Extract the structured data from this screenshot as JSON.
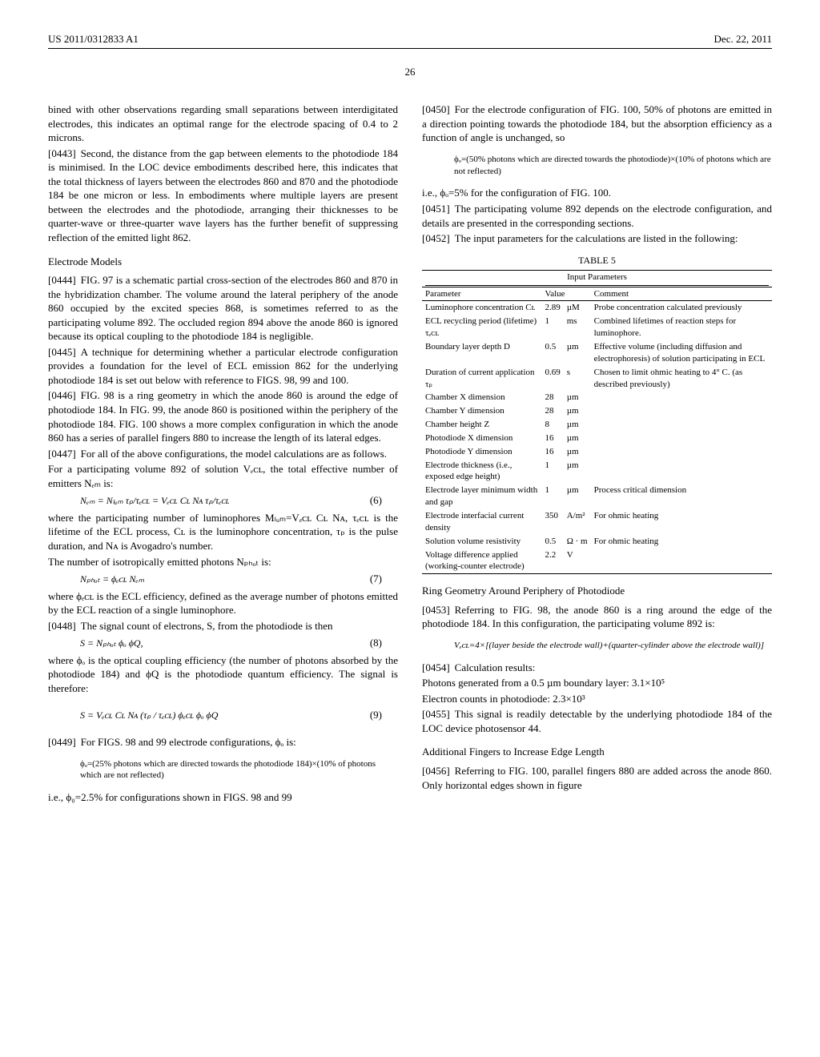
{
  "header": {
    "left": "US 2011/0312833 A1",
    "right": "Dec. 22, 2011"
  },
  "page": "26",
  "left": {
    "p0442_tail": "bined with other observations regarding small separations between interdigitated electrodes, this indicates an optimal range for the electrode spacing of 0.4 to 2 microns.",
    "p0443": "Second, the distance from the gap between elements to the photodiode 184 is minimised. In the LOC device embodiments described here, this indicates that the total thickness of layers between the electrodes 860 and 870 and the photodiode 184 be one micron or less. In embodiments where multiple layers are present between the electrodes and the photodiode, arranging their thicknesses to be quarter-wave or three-quarter wave layers has the further benefit of suppressing reflection of the emitted light 862.",
    "sec_electrode": "Electrode Models",
    "p0444": "FIG. 97 is a schematic partial cross-section of the electrodes 860 and 870 in the hybridization chamber. The volume around the lateral periphery of the anode 860 occupied by the excited species 868, is sometimes referred to as the participating volume 892. The occluded region 894 above the anode 860 is ignored because its optical coupling to the photodiode 184 is negligible.",
    "p0445": "A technique for determining whether a particular electrode configuration provides a foundation for the level of ECL emission 862 for the underlying photodiode 184 is set out below with reference to FIGS. 98, 99 and 100.",
    "p0446": "FIG. 98 is a ring geometry in which the anode 860 is around the edge of photodiode 184. In FIG. 99, the anode 860 is positioned within the periphery of the photodiode 184. FIG. 100 shows a more complex configuration in which the anode 860 has a series of parallel fingers 880 to increase the length of its lateral edges.",
    "p0447": "For all of the above configurations, the model calculations are as follows.",
    "p0447b": "For a participating volume 892 of solution Vₑᴄʟ, the total effective number of emitters Nₑₘ is:",
    "eq6": "Nₑₘ = Nₗᵤₘ τₚ/τₑᴄʟ = Vₑᴄʟ Cʟ Nᴀ τₚ/τₑᴄʟ",
    "eq6n": "(6)",
    "p_where": "where the participating number of luminophores Mₗᵤₘ=Vₑᴄʟ Cʟ Nᴀ, τₑᴄʟ is the lifetime of the ECL process, Cʟ is the luminophore concentration, τₚ is the pulse duration, and Nᴀ is Avogadro's number.",
    "p_nphot": "The number of isotropically emitted photons Nₚₕₒₜ is:",
    "eq7": "Nₚₕₒₜ = ϕₑᴄʟ Nₑₘ",
    "eq7n": "(7)",
    "p_where2": "where ϕₑᴄʟ is the ECL efficiency, defined as the average number of photons emitted by the ECL reaction of a single luminophore.",
    "p0448": "The signal count of electrons, S, from the photodiode is then",
    "eq8": "S = Nₚₕₒₜ ϕₒ ϕQ,",
    "eq8n": "(8)",
    "p_where3": "where ϕₒ is the optical coupling efficiency (the number of photons absorbed by the photodiode 184) and ϕQ is the photodiode quantum efficiency. The signal is therefore:",
    "eq9": "S = Vₑᴄʟ Cʟ Nᴀ (τₚ / τₑᴄʟ) ϕₑᴄʟ ϕₒ ϕQ",
    "eq9n": "(9)",
    "p0449": "For FIGS. 98 and 99 electrode configurations, ϕₒ is:",
    "p0449_def": "ϕₒ=(25% photons which are directed towards the photodiode 184)×(10% of photons which are not reflected)",
    "p0449_res": "i.e., ϕ₀=2.5% for configurations shown in FIGS. 98 and 99"
  },
  "right": {
    "p0450": "For the electrode configuration of FIG. 100, 50% of photons are emitted in a direction pointing towards the photodiode 184, but the absorption efficiency as a function of angle is unchanged, so",
    "p0450_def": "ϕₒ=(50% photons which are directed towards the photodiode)×(10% of photons which are not reflected)",
    "p0450_res": "i.e., ϕₒ=5% for the configuration of FIG. 100.",
    "p0451": "The participating volume 892 depends on the electrode configuration, and details are presented in the corresponding sections.",
    "p0452": "The input parameters for the calculations are listed in the following:",
    "table": {
      "caption": "TABLE 5",
      "subcaption": "Input Parameters",
      "headers": [
        "Parameter",
        "Value",
        "",
        "Comment"
      ],
      "rows": [
        {
          "p": "Luminophore concentration Cʟ",
          "v": "2.89",
          "u": "µM",
          "c": "Probe concentration calculated previously"
        },
        {
          "p": "ECL recycling period (lifetime) τₑᴄʟ",
          "v": "1",
          "u": "ms",
          "c": "Combined lifetimes of reaction steps for luminophore."
        },
        {
          "p": "Boundary layer depth D",
          "v": "0.5",
          "u": "µm",
          "c": "Effective volume (including diffusion and electrophoresis) of solution participating in ECL"
        },
        {
          "p": "Duration of current application τₚ",
          "v": "0.69",
          "u": "s",
          "c": "Chosen to limit ohmic heating to 4° C. (as described previously)"
        },
        {
          "p": "Chamber X dimension",
          "v": "28",
          "u": "µm",
          "c": ""
        },
        {
          "p": "Chamber Y dimension",
          "v": "28",
          "u": "µm",
          "c": ""
        },
        {
          "p": "Chamber height Z",
          "v": "8",
          "u": "µm",
          "c": ""
        },
        {
          "p": "Photodiode X dimension",
          "v": "16",
          "u": "µm",
          "c": ""
        },
        {
          "p": "Photodiode Y dimension",
          "v": "16",
          "u": "µm",
          "c": ""
        },
        {
          "p": "Electrode thickness (i.e., exposed edge height)",
          "v": "1",
          "u": "µm",
          "c": ""
        },
        {
          "p": "Electrode layer minimum width and gap",
          "v": "1",
          "u": "µm",
          "c": "Process critical dimension"
        },
        {
          "p": "Electrode interfacial current density",
          "v": "350",
          "u": "A/m²",
          "c": "For ohmic heating"
        },
        {
          "p": "Solution volume resistivity",
          "v": "0.5",
          "u": "Ω · m",
          "c": "For ohmic heating"
        },
        {
          "p": "Voltage difference applied (working-counter electrode)",
          "v": "2.2",
          "u": "V",
          "c": ""
        }
      ]
    },
    "sec_ring": "Ring Geometry Around Periphery of Photodiode",
    "p0453": "Referring to FIG. 98, the anode 860 is a ring around the edge of the photodiode 184. In this configuration, the participating volume 892 is:",
    "p0453_eq": "Vₑᴄʟ=4×[(layer beside the electrode wall)+(quarter-cylinder above the electrode wall)]",
    "p0454": "Calculation results:",
    "p0454_a": "Photons generated from a 0.5 µm boundary layer: 3.1×10⁵",
    "p0454_b": "Electron counts in photodiode: 2.3×10³",
    "p0455": "This signal is readily detectable by the underlying photodiode 184 of the LOC device photosensor 44.",
    "sec_fingers": "Additional Fingers to Increase Edge Length",
    "p0456": "Referring to FIG. 100, parallel fingers 880 are added across the anode 860. Only horizontal edges shown in figure"
  },
  "nums": {
    "n0443": "[0443]",
    "n0444": "[0444]",
    "n0445": "[0445]",
    "n0446": "[0446]",
    "n0447": "[0447]",
    "n0448": "[0448]",
    "n0449": "[0449]",
    "n0450": "[0450]",
    "n0451": "[0451]",
    "n0452": "[0452]",
    "n0453": "[0453]",
    "n0454": "[0454]",
    "n0455": "[0455]",
    "n0456": "[0456]"
  }
}
